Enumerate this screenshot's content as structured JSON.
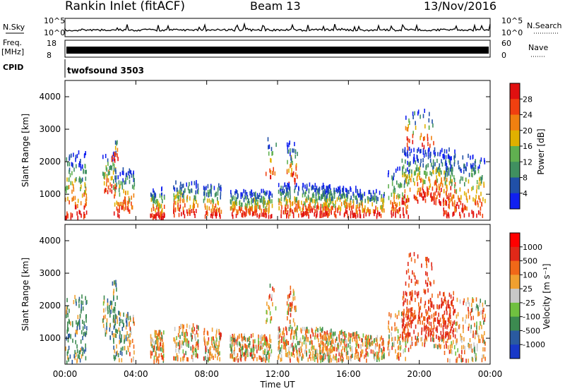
{
  "header": {
    "title": "Rankin Inlet (fitACF)",
    "beam": "Beam 13",
    "date": "13/Nov/2016"
  },
  "aux_panels": {
    "nsky_label": "N.Sky",
    "nsky_ticks": [
      "10^5",
      "10^0"
    ],
    "nsearch_label": "N.Search",
    "nsearch_ticks": [
      "10^5",
      "10^0"
    ],
    "freq_label": "Freq.",
    "freq_unit": "[MHz]",
    "freq_ticks": [
      "18",
      "8"
    ],
    "nave_label": "Nave",
    "nave_ticks": [
      "60",
      "0"
    ],
    "cpid_label": "CPID",
    "cpid_text": "twofsound 3503"
  },
  "chart_data": [
    {
      "type": "heatmap",
      "name": "power",
      "ylabel": "Slant Range [km]",
      "ylim": [
        200,
        4500
      ],
      "yticks": [
        "1000",
        "2000",
        "3000",
        "4000"
      ],
      "colorbar_label": "Power [dB]",
      "colorbar_ticks": [
        "4",
        "8",
        "12",
        "16",
        "20",
        "24",
        "28"
      ],
      "colors": [
        "#1020f0",
        "#2050a8",
        "#409060",
        "#60b050",
        "#e0b000",
        "#f08010",
        "#f04010",
        "#e01010"
      ]
    },
    {
      "type": "heatmap",
      "name": "velocity",
      "ylabel": "Slant Range [km]",
      "ylim": [
        200,
        4500
      ],
      "yticks": [
        "1000",
        "2000",
        "3000",
        "4000"
      ],
      "colorbar_label": "Velocity [m s⁻¹]",
      "colorbar_ticks": [
        "1000",
        "500",
        "100",
        "25",
        "-25",
        "-100",
        "-500",
        "-1000"
      ],
      "colors": [
        "#1838c8",
        "#2a5aa0",
        "#3c8a50",
        "#70c040",
        "#c8c8c8",
        "#f0a030",
        "#f06818",
        "#e02818",
        "#ff0000"
      ]
    }
  ],
  "xaxis": {
    "ticks": [
      "00:00",
      "04:00",
      "08:00",
      "12:00",
      "16:00",
      "20:00",
      "00:00"
    ],
    "label": "Time UT"
  }
}
